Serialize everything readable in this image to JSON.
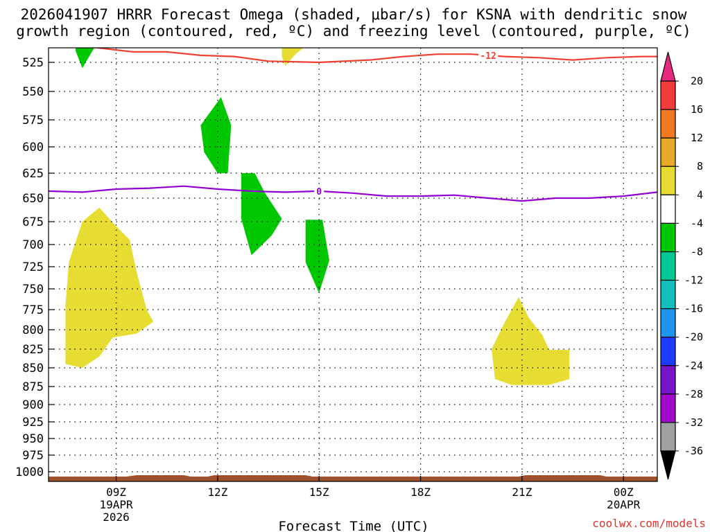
{
  "chart_data": {
    "type": "contour-shaded",
    "title_line1": "2026041907 HRRR Forecast Omega (shaded, μbar/s) for KSNA with dendritic snow",
    "title_line2": "growth region (contoured, red, ºC) and freezing level (contoured, purple, ºC)",
    "xlabel": "Forecast Time (UTC)",
    "x_range_hours": [
      7,
      25
    ],
    "x_ticks": [
      {
        "hour": 9,
        "label": "09Z",
        "label2": "19APR",
        "label3": "2026"
      },
      {
        "hour": 12,
        "label": "12Z"
      },
      {
        "hour": 15,
        "label": "15Z"
      },
      {
        "hour": 18,
        "label": "18Z"
      },
      {
        "hour": 21,
        "label": "21Z"
      },
      {
        "hour": 24,
        "label": "00Z",
        "label2": "20APR"
      }
    ],
    "y_levels_mb": [
      525,
      550,
      575,
      600,
      625,
      650,
      675,
      700,
      725,
      750,
      775,
      800,
      825,
      850,
      875,
      900,
      925,
      950,
      975,
      1000
    ],
    "y_range_mb": [
      505,
      1010
    ],
    "colorbar": {
      "labels": [
        "20",
        "16",
        "12",
        "8",
        "4",
        "-4",
        "-8",
        "-12",
        "-16",
        "-20",
        "-24",
        "-28",
        "-32",
        "-36"
      ],
      "colors": [
        "#e8287e",
        "#f03c3c",
        "#f07820",
        "#e6aa28",
        "#e6dc32",
        "#ffffff",
        "#00c800",
        "#00c896",
        "#14bebe",
        "#1e96f0",
        "#1e3cff",
        "#7814c8",
        "#a00ac8",
        "#a0a0a0",
        "#000000"
      ]
    },
    "lines": [
      {
        "name": "dendritic-growth-contour",
        "label": "-12",
        "color": "#f04030",
        "points": [
          [
            7.7,
            506
          ],
          [
            8.3,
            512
          ],
          [
            9.5,
            516
          ],
          [
            10.5,
            516
          ],
          [
            11.5,
            519
          ],
          [
            12.5,
            520
          ],
          [
            13.5,
            524
          ],
          [
            15.0,
            525
          ],
          [
            16.5,
            523
          ],
          [
            17.5,
            520
          ],
          [
            18.5,
            518
          ],
          [
            19.5,
            518
          ],
          [
            20.5,
            520
          ],
          [
            21.5,
            521
          ],
          [
            22.5,
            523
          ],
          [
            23.5,
            521
          ],
          [
            24.5,
            520
          ],
          [
            25.0,
            520
          ]
        ]
      },
      {
        "name": "freezing-level-contour",
        "label": "0",
        "color": "#9400d3",
        "points": [
          [
            7.0,
            643
          ],
          [
            8.0,
            644
          ],
          [
            9.0,
            641
          ],
          [
            10.0,
            640
          ],
          [
            11.0,
            638
          ],
          [
            12.0,
            641
          ],
          [
            13.0,
            643
          ],
          [
            14.0,
            644
          ],
          [
            15.0,
            643
          ],
          [
            16.0,
            645
          ],
          [
            17.0,
            648
          ],
          [
            18.0,
            648
          ],
          [
            19.0,
            647
          ],
          [
            20.0,
            650
          ],
          [
            21.0,
            653
          ],
          [
            22.0,
            650
          ],
          [
            23.0,
            650
          ],
          [
            24.0,
            648
          ],
          [
            25.0,
            644
          ]
        ]
      }
    ],
    "features": [
      {
        "type": "upward-yellow",
        "color": "#e6dc32",
        "points": [
          [
            8.5,
            660
          ],
          [
            9.0,
            680
          ],
          [
            9.4,
            695
          ],
          [
            9.6,
            730
          ],
          [
            9.9,
            775
          ],
          [
            10.1,
            790
          ],
          [
            9.6,
            805
          ],
          [
            8.9,
            810
          ],
          [
            8.5,
            835
          ],
          [
            8.0,
            850
          ],
          [
            7.5,
            845
          ],
          [
            7.5,
            815
          ],
          [
            7.5,
            770
          ],
          [
            7.6,
            720
          ],
          [
            8.0,
            675
          ]
        ]
      },
      {
        "type": "upward-yellow",
        "color": "#e6dc32",
        "points": [
          [
            20.9,
            760
          ],
          [
            21.2,
            785
          ],
          [
            21.6,
            807
          ],
          [
            21.8,
            826
          ],
          [
            22.4,
            826
          ],
          [
            22.4,
            865
          ],
          [
            21.8,
            873
          ],
          [
            20.7,
            873
          ],
          [
            20.2,
            865
          ],
          [
            20.1,
            825
          ],
          [
            20.5,
            790
          ]
        ]
      },
      {
        "type": "upward-yellow",
        "color": "#e6dc32",
        "points": [
          [
            13.9,
            506
          ],
          [
            14.8,
            506
          ],
          [
            14.3,
            518
          ],
          [
            14.0,
            528
          ],
          [
            13.9,
            520
          ]
        ]
      },
      {
        "type": "downward-green",
        "color": "#00c800",
        "points": [
          [
            12.1,
            555
          ],
          [
            12.4,
            580
          ],
          [
            12.3,
            625
          ],
          [
            12.0,
            625
          ],
          [
            11.6,
            605
          ],
          [
            11.5,
            580
          ]
        ]
      },
      {
        "type": "downward-green",
        "color": "#00c800",
        "points": [
          [
            12.7,
            625
          ],
          [
            13.1,
            625
          ],
          [
            13.4,
            645
          ],
          [
            13.9,
            672
          ],
          [
            13.6,
            690
          ],
          [
            13.0,
            712
          ],
          [
            12.7,
            672
          ]
        ]
      },
      {
        "type": "downward-green",
        "color": "#00c800",
        "points": [
          [
            14.6,
            673
          ],
          [
            15.1,
            673
          ],
          [
            15.3,
            718
          ],
          [
            15.0,
            755
          ],
          [
            14.6,
            720
          ],
          [
            14.6,
            700
          ]
        ]
      },
      {
        "type": "downward-green",
        "color": "#00c800",
        "points": [
          [
            7.8,
            506
          ],
          [
            8.5,
            506
          ],
          [
            8.3,
            515
          ],
          [
            8.0,
            530
          ],
          [
            7.8,
            515
          ]
        ]
      }
    ],
    "terrain_color": "#a0522d"
  },
  "credit": "coolwx.com/models"
}
